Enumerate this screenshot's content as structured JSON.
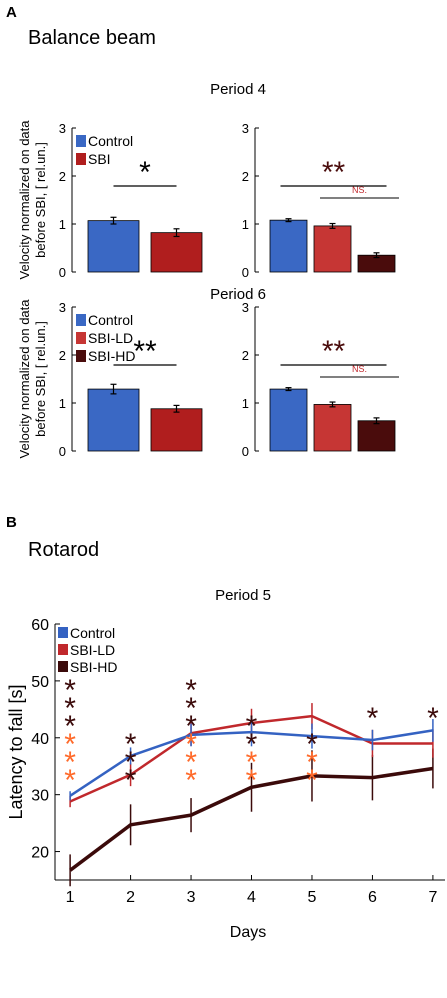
{
  "colors": {
    "control": "#3a68c4",
    "sbi": "#b01e1e",
    "sbi_ld": "#c63634",
    "sbi_hd": "#4a0c0c",
    "rotarod_control": "#3462c2",
    "rotarod_ld": "#c0282c",
    "rotarod_hd": "#3b0a0a",
    "star_orange": "#ff6a2a",
    "star_dark": "#3b0a0a",
    "ns": "#c0282c"
  },
  "panel_a": {
    "letter": "A",
    "title": "Balance beam",
    "ylabel_line1": "Velocity normalized on data",
    "ylabel_line2": "before SBI, [ rel.un.]",
    "yticks": [
      "0",
      "1",
      "2",
      "3"
    ]
  },
  "panel_b": {
    "letter": "B",
    "title": "Rotarod"
  },
  "chart_data": [
    {
      "type": "bar",
      "id": "p4-left",
      "title": "Period 4",
      "categories": [
        "Control",
        "SBI"
      ],
      "values": [
        1.07,
        0.82
      ],
      "errors": [
        0.07,
        0.08
      ],
      "ylim": [
        0,
        3
      ],
      "legend": [
        "Control",
        "SBI"
      ],
      "legend_placement": "top-left",
      "annotations": [
        {
          "text": "*",
          "type": "significance",
          "between": [
            "Control",
            "SBI"
          ]
        }
      ]
    },
    {
      "type": "bar",
      "id": "p4-right",
      "categories": [
        "Control",
        "SBI-LD",
        "SBI-HD"
      ],
      "values": [
        1.08,
        0.96,
        0.35
      ],
      "errors": [
        0.03,
        0.05,
        0.05
      ],
      "ylim": [
        0,
        3
      ],
      "annotations": [
        {
          "text": "**",
          "type": "significance",
          "between": [
            "Control",
            "SBI-HD"
          ]
        },
        {
          "text": "NS.",
          "type": "significance",
          "between": [
            "SBI-LD",
            "SBI-HD"
          ]
        }
      ]
    },
    {
      "type": "bar",
      "id": "p6-left",
      "title": "Period 6",
      "categories": [
        "Control",
        "SBI"
      ],
      "values": [
        1.29,
        0.88
      ],
      "errors": [
        0.1,
        0.07
      ],
      "ylim": [
        0,
        3
      ],
      "legend": [
        "Control",
        "SBI-LD",
        "SBI-HD"
      ],
      "legend_placement": "top-left",
      "annotations": [
        {
          "text": "**",
          "type": "significance",
          "between": [
            "Control",
            "SBI"
          ]
        }
      ]
    },
    {
      "type": "bar",
      "id": "p6-right",
      "categories": [
        "Control",
        "SBI-LD",
        "SBI-HD"
      ],
      "values": [
        1.29,
        0.97,
        0.63
      ],
      "errors": [
        0.03,
        0.05,
        0.06
      ],
      "ylim": [
        0,
        3
      ],
      "annotations": [
        {
          "text": "**",
          "type": "significance",
          "between": [
            "Control",
            "SBI-HD"
          ]
        },
        {
          "text": "NS.",
          "type": "significance",
          "between": [
            "SBI-LD",
            "SBI-HD"
          ]
        }
      ]
    },
    {
      "type": "line",
      "id": "rotarod",
      "title": "Period 5",
      "xlabel": "Days",
      "ylabel": "Latency to fall [s]",
      "x": [
        1,
        2,
        3,
        4,
        5,
        6,
        7
      ],
      "xlim": [
        0.75,
        7.2
      ],
      "ylim": [
        15,
        60
      ],
      "yticks": [
        20,
        30,
        40,
        50,
        60
      ],
      "legend_placement": "top-left",
      "series": [
        {
          "name": "Control",
          "values": [
            29.8,
            36.8,
            40.5,
            41.0,
            40.3,
            39.6,
            41.3
          ],
          "errors": [
            0.8,
            1.5,
            2.0,
            2.5,
            2.2,
            1.8,
            2.0
          ]
        },
        {
          "name": "SBI-LD",
          "values": [
            28.8,
            33.5,
            40.8,
            42.6,
            43.8,
            39.0,
            39.0
          ],
          "errors": [
            1.0,
            2.0,
            2.2,
            2.5,
            2.3,
            2.4,
            2.5
          ]
        },
        {
          "name": "SBI-HD",
          "values": [
            16.7,
            24.7,
            26.4,
            31.3,
            33.3,
            33.0,
            34.6
          ],
          "errors": [
            2.8,
            3.6,
            3.0,
            4.3,
            4.5,
            4.0,
            3.5
          ]
        }
      ],
      "annotations": [
        {
          "x": 1,
          "dark": "***",
          "orange": "***"
        },
        {
          "x": 2,
          "dark": "***",
          "orange": ""
        },
        {
          "x": 3,
          "dark": "***",
          "orange": "***"
        },
        {
          "x": 4,
          "dark": "**",
          "orange": "**"
        },
        {
          "x": 5,
          "dark": "*",
          "orange": "**"
        },
        {
          "x": 6,
          "dark": "*",
          "orange": ""
        },
        {
          "x": 7,
          "dark": "*",
          "orange": ""
        }
      ]
    }
  ]
}
